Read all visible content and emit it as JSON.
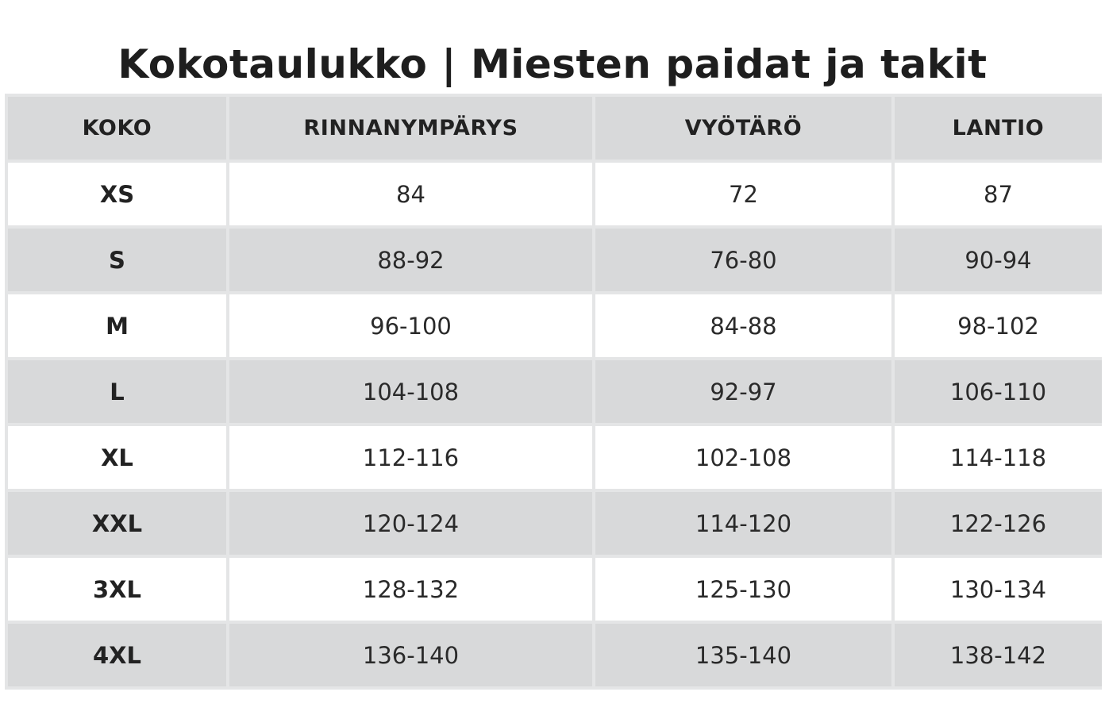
{
  "title": "Kokotaulukko | Miesten paidat ja takit",
  "table": {
    "headers": [
      "KOKO",
      "RINNANYMPÄRYS",
      "VYÖTÄRÖ",
      "LANTIO"
    ],
    "rows": [
      [
        "XS",
        "84",
        "72",
        "87"
      ],
      [
        "S",
        "88-92",
        "76-80",
        "90-94"
      ],
      [
        "M",
        "96-100",
        "84-88",
        "98-102"
      ],
      [
        "L",
        "104-108",
        "92-97",
        "106-110"
      ],
      [
        "XL",
        "112-116",
        "102-108",
        "114-118"
      ],
      [
        "XXL",
        "120-124",
        "114-120",
        "122-126"
      ],
      [
        "3XL",
        "128-132",
        "125-130",
        "130-134"
      ],
      [
        "4XL",
        "136-140",
        "135-140",
        "138-142"
      ]
    ]
  },
  "colors": {
    "header_bg": "#d8d9da",
    "stripe_bg": "#d8d9da",
    "plain_bg": "#ffffff",
    "text": "#1f1f1f"
  }
}
